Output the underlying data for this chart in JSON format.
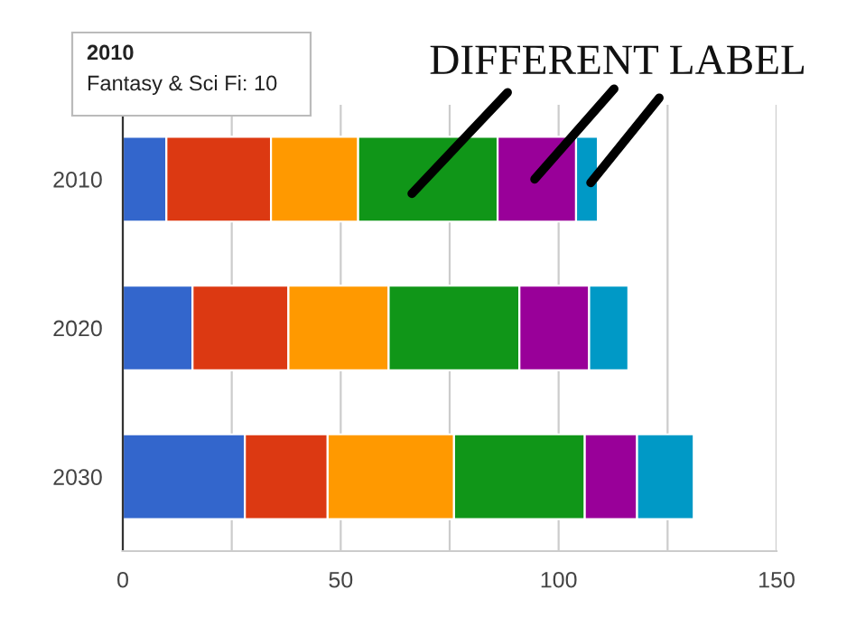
{
  "chart_data": {
    "type": "bar",
    "orientation": "horizontal",
    "stacked": true,
    "categories": [
      "2010",
      "2020",
      "2030"
    ],
    "series": [
      {
        "color": "#3366cc",
        "values": [
          10,
          16,
          28
        ]
      },
      {
        "color": "#dc3912",
        "values": [
          24,
          22,
          19
        ]
      },
      {
        "color": "#ff9900",
        "values": [
          20,
          23,
          29
        ]
      },
      {
        "color": "#109618",
        "values": [
          32,
          30,
          30
        ]
      },
      {
        "color": "#990099",
        "values": [
          18,
          16,
          12
        ]
      },
      {
        "color": "#0099c6",
        "values": [
          5,
          9,
          13
        ]
      }
    ],
    "xlim": [
      0,
      150
    ],
    "xticks": [
      0,
      {
        "value": 25,
        "label": null
      },
      50,
      {
        "value": 75,
        "label": null
      },
      100,
      {
        "value": 125,
        "label": null
      },
      150
    ],
    "grid": "x",
    "legend": false,
    "annotations": [
      "2010",
      "Fantasy & Sci Fi: 10",
      {
        "text": "DIFFERENT LABEL",
        "x": 109,
        "y": "2010"
      }
    ]
  }
}
